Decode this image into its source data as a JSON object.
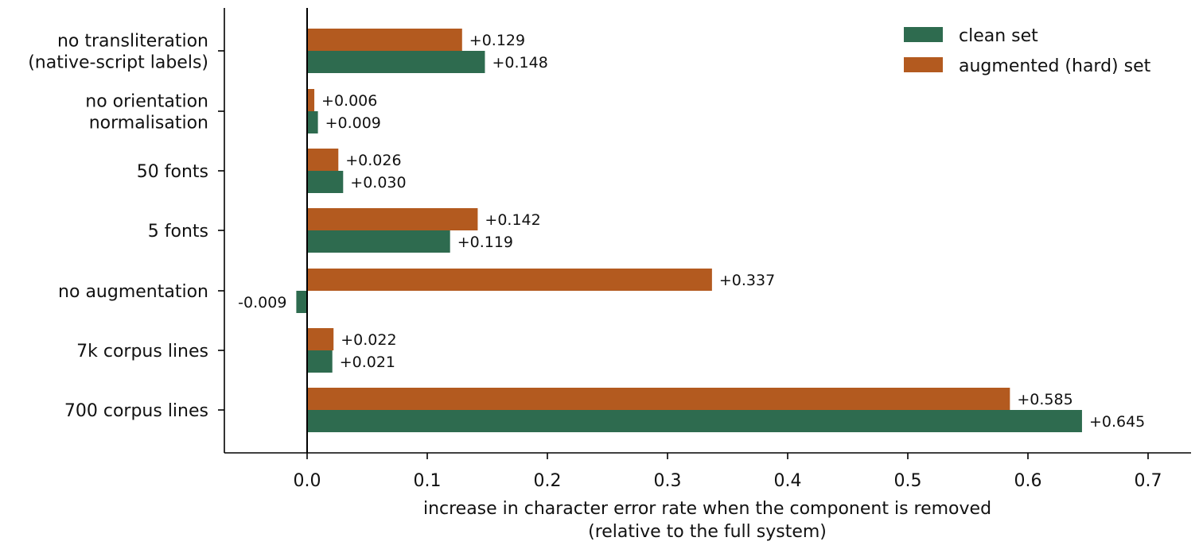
{
  "chart_data": {
    "type": "bar",
    "orientation": "horizontal",
    "title": "",
    "xlabel": [
      "increase in character error rate when the component is removed",
      "(relative to the full system)"
    ],
    "ylabel": "",
    "xlim": [
      -0.068,
      0.735
    ],
    "x_ticks": [
      0.0,
      0.1,
      0.2,
      0.3,
      0.4,
      0.5,
      0.6,
      0.7
    ],
    "x_tick_labels": [
      "0.0",
      "0.1",
      "0.2",
      "0.3",
      "0.4",
      "0.5",
      "0.6",
      "0.7"
    ],
    "grid": false,
    "legend_position": "top-right",
    "categories": [
      [
        "no transliteration",
        "(native-script labels)"
      ],
      [
        "no orientation",
        "normalisation"
      ],
      [
        "50 fonts"
      ],
      [
        "5 fonts"
      ],
      [
        "no augmentation"
      ],
      [
        "7k corpus lines"
      ],
      [
        "700 corpus lines"
      ]
    ],
    "series": [
      {
        "name": "clean set",
        "color": "#2e6b4f",
        "values": [
          0.148,
          0.009,
          0.03,
          0.119,
          -0.009,
          0.021,
          0.645
        ],
        "labels": [
          "+0.148",
          "+0.009",
          "+0.030",
          "+0.119",
          "-0.009",
          "+0.021",
          "+0.645"
        ]
      },
      {
        "name": "augmented (hard) set",
        "color": "#b35a1f",
        "values": [
          0.129,
          0.006,
          0.026,
          0.142,
          0.337,
          0.022,
          0.585
        ],
        "labels": [
          "+0.129",
          "+0.006",
          "+0.026",
          "+0.142",
          "+0.337",
          "+0.022",
          "+0.585"
        ]
      }
    ]
  }
}
